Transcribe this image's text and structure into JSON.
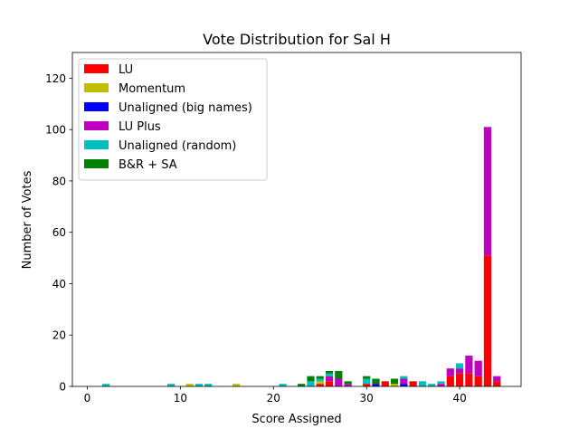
{
  "chart_data": {
    "type": "bar",
    "stacked": true,
    "title": "Vote Distribution for Sal H",
    "xlabel": "Score Assigned",
    "ylabel": "Number of Votes",
    "xlim": [
      -1.6,
      46.6
    ],
    "ylim": [
      0,
      130
    ],
    "xticks": [
      0,
      10,
      20,
      30,
      40
    ],
    "yticks": [
      0,
      20,
      40,
      60,
      80,
      100,
      120
    ],
    "grid": false,
    "legend_position": "top-left",
    "series": [
      {
        "name": "LU",
        "color": "#ff0000",
        "points": [
          {
            "x": 25,
            "y": 1
          },
          {
            "x": 26,
            "y": 2
          },
          {
            "x": 30,
            "y": 1
          },
          {
            "x": 32,
            "y": 2
          },
          {
            "x": 35,
            "y": 2
          },
          {
            "x": 39,
            "y": 4
          },
          {
            "x": 40,
            "y": 5
          },
          {
            "x": 41,
            "y": 5
          },
          {
            "x": 42,
            "y": 4
          },
          {
            "x": 43,
            "y": 51
          },
          {
            "x": 44,
            "y": 2
          }
        ]
      },
      {
        "name": "Momentum",
        "color": "#bfbf00",
        "points": [
          {
            "x": 11,
            "y": 1
          },
          {
            "x": 16,
            "y": 1
          },
          {
            "x": 25,
            "y": 1
          },
          {
            "x": 33,
            "y": 1
          }
        ]
      },
      {
        "name": "Unaligned (big names)",
        "color": "#0000ff",
        "points": [
          {
            "x": 31,
            "y": 1
          },
          {
            "x": 34,
            "y": 1
          }
        ]
      },
      {
        "name": "LU Plus",
        "color": "#bf00bf",
        "points": [
          {
            "x": 26,
            "y": 2
          },
          {
            "x": 27,
            "y": 3
          },
          {
            "x": 28,
            "y": 1
          },
          {
            "x": 34,
            "y": 2
          },
          {
            "x": 38,
            "y": 1
          },
          {
            "x": 39,
            "y": 3
          },
          {
            "x": 40,
            "y": 2
          },
          {
            "x": 41,
            "y": 7
          },
          {
            "x": 42,
            "y": 6
          },
          {
            "x": 43,
            "y": 50
          },
          {
            "x": 44,
            "y": 2
          }
        ]
      },
      {
        "name": "Unaligned (random)",
        "color": "#00bfbf",
        "points": [
          {
            "x": 2,
            "y": 1
          },
          {
            "x": 9,
            "y": 1
          },
          {
            "x": 12,
            "y": 1
          },
          {
            "x": 13,
            "y": 1
          },
          {
            "x": 21,
            "y": 1
          },
          {
            "x": 24,
            "y": 2
          },
          {
            "x": 25,
            "y": 1
          },
          {
            "x": 26,
            "y": 1
          },
          {
            "x": 30,
            "y": 2
          },
          {
            "x": 34,
            "y": 1
          },
          {
            "x": 36,
            "y": 2
          },
          {
            "x": 37,
            "y": 1
          },
          {
            "x": 38,
            "y": 1
          },
          {
            "x": 40,
            "y": 2
          }
        ]
      },
      {
        "name": "B&R + SA",
        "color": "#008000",
        "points": [
          {
            "x": 23,
            "y": 1
          },
          {
            "x": 24,
            "y": 2
          },
          {
            "x": 25,
            "y": 1
          },
          {
            "x": 26,
            "y": 1
          },
          {
            "x": 27,
            "y": 3
          },
          {
            "x": 28,
            "y": 1
          },
          {
            "x": 30,
            "y": 1
          },
          {
            "x": 31,
            "y": 2
          },
          {
            "x": 33,
            "y": 2
          }
        ]
      }
    ]
  }
}
